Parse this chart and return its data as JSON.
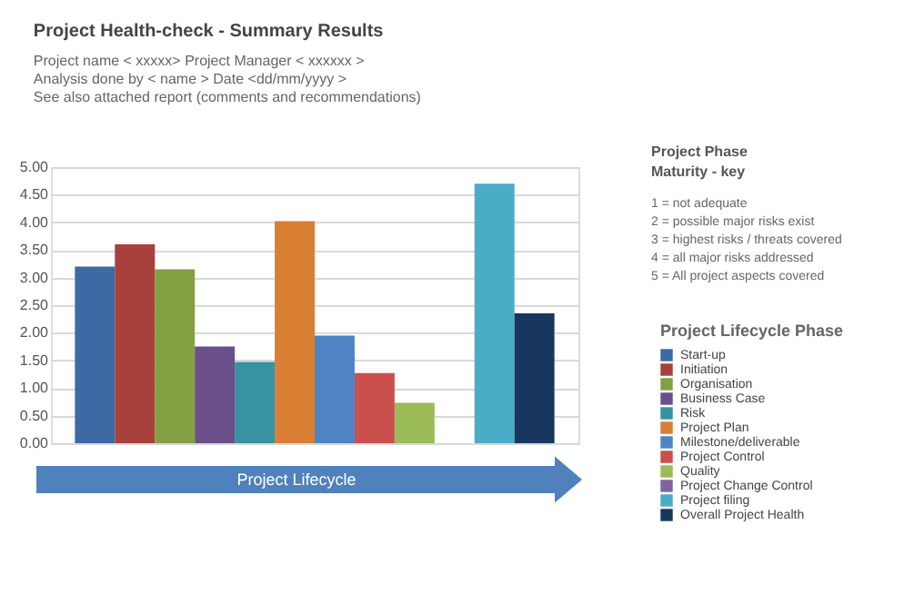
{
  "chart_data": {
    "type": "bar",
    "title": "Project Health-check - Summary Results",
    "subtitle": [
      "Project name < xxxxx>      Project Manager < xxxxxx >",
      "Analysis done by < name >    Date <dd/mm/yyyy >",
      "See also attached report (comments and recommendations)"
    ],
    "xlabel": "Project Lifecycle",
    "legend_title": "Project Lifecycle Phase",
    "categories": [
      null
    ],
    "series": [
      {
        "name": "Start-up",
        "color": "#3d6aa4",
        "values": [
          3.2
        ]
      },
      {
        "name": "Initiation",
        "color": "#a8403c",
        "values": [
          3.6
        ]
      },
      {
        "name": "Organisation",
        "color": "#83a042",
        "values": [
          3.15
        ]
      },
      {
        "name": "Business Case",
        "color": "#6b4f8a",
        "values": [
          1.75
        ]
      },
      {
        "name": "Risk",
        "color": "#37939f",
        "values": [
          1.47
        ]
      },
      {
        "name": "Project Plan",
        "color": "#d97f34",
        "values": [
          4.02
        ]
      },
      {
        "name": "Milestone/deliverable",
        "color": "#4f84c4",
        "values": [
          1.95
        ]
      },
      {
        "name": "Project Control",
        "color": "#c9504d",
        "values": [
          1.27
        ]
      },
      {
        "name": "Quality",
        "color": "#9bbb59",
        "values": [
          0.73
        ]
      },
      {
        "name": "Project Change Control",
        "color": "#8064a2",
        "values": [
          null
        ]
      },
      {
        "name": "Project filing",
        "color": "#4bacc6",
        "values": [
          4.7
        ]
      },
      {
        "name": "Overall Project Health",
        "color": "#17375e",
        "values": [
          2.35
        ]
      }
    ],
    "ylim": [
      0,
      5
    ],
    "yticks": [
      {
        "value": 0,
        "label": "0.00"
      },
      {
        "value": 0.5,
        "label": "0.50"
      },
      {
        "value": 1,
        "label": "1.00"
      },
      {
        "value": 1.5,
        "label": "1.50"
      },
      {
        "value": 2,
        "label": "2.00"
      },
      {
        "value": 2.5,
        "label": "2.50"
      },
      {
        "value": 3,
        "label": "3.00"
      },
      {
        "value": 3.5,
        "label": "3.50"
      },
      {
        "value": 4,
        "label": "4.00"
      },
      {
        "value": 4.5,
        "label": "4.50"
      },
      {
        "value": 5,
        "label": "5.00"
      }
    ],
    "grid": "y",
    "legend": "right",
    "tick_labels": "y",
    "annotations": [
      "Project Phase",
      "Maturity - key",
      "1 = not adequate",
      "2 = possible major risks exist",
      "3 = highest risks / threats covered",
      "4 = all major risks addressed",
      "5 = All project aspects covered"
    ]
  }
}
